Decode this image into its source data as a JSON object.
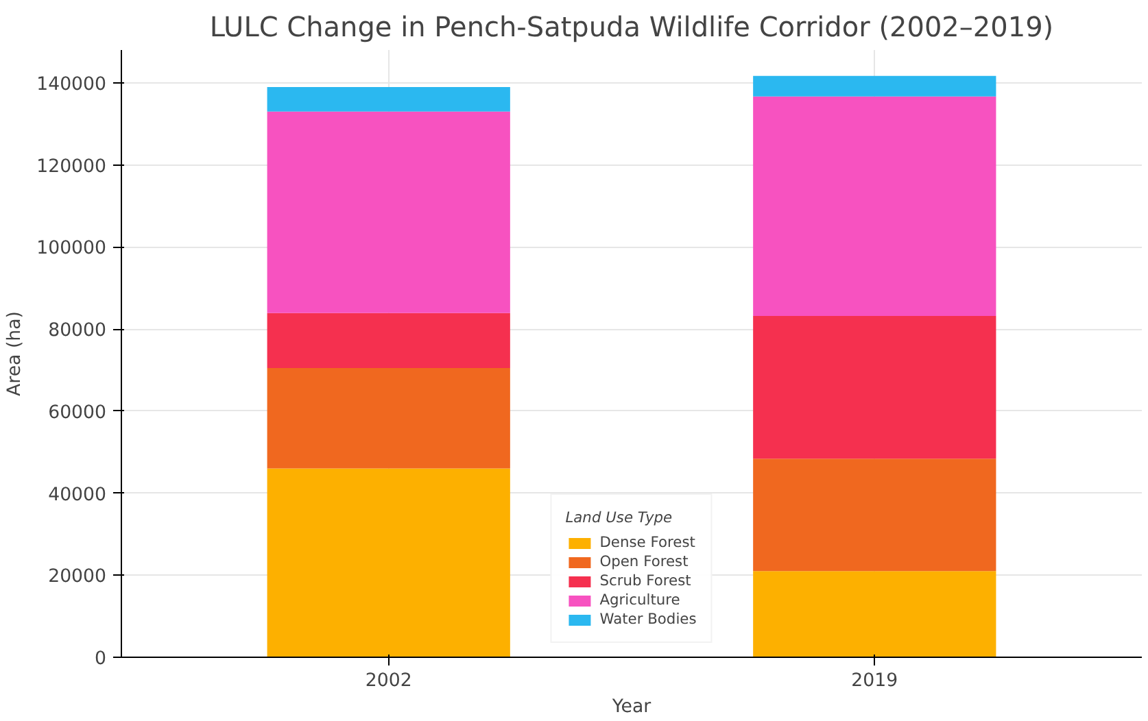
{
  "chart_data": {
    "type": "bar",
    "stacked": true,
    "title": "LULC Change in Pench-Satpuda Wildlife Corridor (2002–2019)",
    "xlabel": "Year",
    "ylabel": "Area (ha)",
    "legend_title": "Land Use Type",
    "categories": [
      "2002",
      "2019"
    ],
    "series": [
      {
        "name": "Dense Forest",
        "color": "#fdb000",
        "values": [
          46000,
          21000
        ]
      },
      {
        "name": "Open Forest",
        "color": "#f0681f",
        "values": [
          24500,
          27400
        ]
      },
      {
        "name": "Scrub Forest",
        "color": "#f5304f",
        "values": [
          13400,
          34800
        ]
      },
      {
        "name": "Agriculture",
        "color": "#f752c0",
        "values": [
          49100,
          53500
        ]
      },
      {
        "name": "Water Bodies",
        "color": "#2bb8f0",
        "values": [
          6000,
          5000
        ]
      }
    ],
    "ylim": [
      0,
      148000
    ],
    "yticks": [
      0,
      20000,
      40000,
      60000,
      80000,
      100000,
      120000,
      140000
    ],
    "grid": true,
    "legend": "bottom"
  }
}
